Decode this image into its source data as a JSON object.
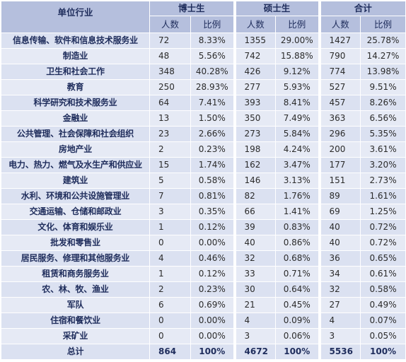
{
  "header": {
    "industry_col": "单位行业",
    "groups": [
      "博士生",
      "硕士生",
      "合计"
    ],
    "sub": [
      "人数",
      "比例",
      "人数",
      "比例",
      "人数",
      "比例"
    ]
  },
  "rows": [
    [
      "信息传输、软件和信息技术服务业",
      "72",
      "8.33%",
      "1355",
      "29.00%",
      "1427",
      "25.78%"
    ],
    [
      "制造业",
      "48",
      "5.56%",
      "742",
      "15.88%",
      "790",
      "14.27%"
    ],
    [
      "卫生和社会工作",
      "348",
      "40.28%",
      "426",
      "9.12%",
      "774",
      "13.98%"
    ],
    [
      "教育",
      "250",
      "28.93%",
      "277",
      "5.93%",
      "527",
      "9.51%"
    ],
    [
      "科学研究和技术服务业",
      "64",
      "7.41%",
      "393",
      "8.41%",
      "457",
      "8.26%"
    ],
    [
      "金融业",
      "13",
      "1.50%",
      "350",
      "7.49%",
      "363",
      "6.56%"
    ],
    [
      "公共管理、社会保障和社会组织",
      "23",
      "2.66%",
      "273",
      "5.84%",
      "296",
      "5.35%"
    ],
    [
      "房地产业",
      "2",
      "0.23%",
      "198",
      "4.24%",
      "200",
      "3.61%"
    ],
    [
      "电力、热力、燃气及水生产和供应业",
      "15",
      "1.74%",
      "162",
      "3.47%",
      "177",
      "3.20%"
    ],
    [
      "建筑业",
      "5",
      "0.58%",
      "146",
      "3.13%",
      "151",
      "2.73%"
    ],
    [
      "水利、环境和公共设施管理业",
      "7",
      "0.81%",
      "82",
      "1.76%",
      "89",
      "1.61%"
    ],
    [
      "交通运输、仓储和邮政业",
      "3",
      "0.35%",
      "66",
      "1.41%",
      "69",
      "1.25%"
    ],
    [
      "文化、体育和娱乐业",
      "1",
      "0.12%",
      "39",
      "0.83%",
      "40",
      "0.72%"
    ],
    [
      "批发和零售业",
      "0",
      "0.00%",
      "40",
      "0.86%",
      "40",
      "0.72%"
    ],
    [
      "居民服务、修理和其他服务业",
      "4",
      "0.46%",
      "32",
      "0.68%",
      "36",
      "0.65%"
    ],
    [
      "租赁和商务服务业",
      "1",
      "0.12%",
      "33",
      "0.71%",
      "34",
      "0.61%"
    ],
    [
      "农、林、牧、渔业",
      "2",
      "0.23%",
      "30",
      "0.64%",
      "32",
      "0.58%"
    ],
    [
      "军队",
      "6",
      "0.69%",
      "21",
      "0.45%",
      "27",
      "0.49%"
    ],
    [
      "住宿和餐饮业",
      "0",
      "0.00%",
      "4",
      "0.09%",
      "4",
      "0.07%"
    ],
    [
      "采矿业",
      "0",
      "0.00%",
      "3",
      "0.06%",
      "3",
      "0.05%"
    ]
  ],
  "total": [
    "总计",
    "864",
    "100%",
    "4672",
    "100%",
    "5536",
    "100%"
  ]
}
